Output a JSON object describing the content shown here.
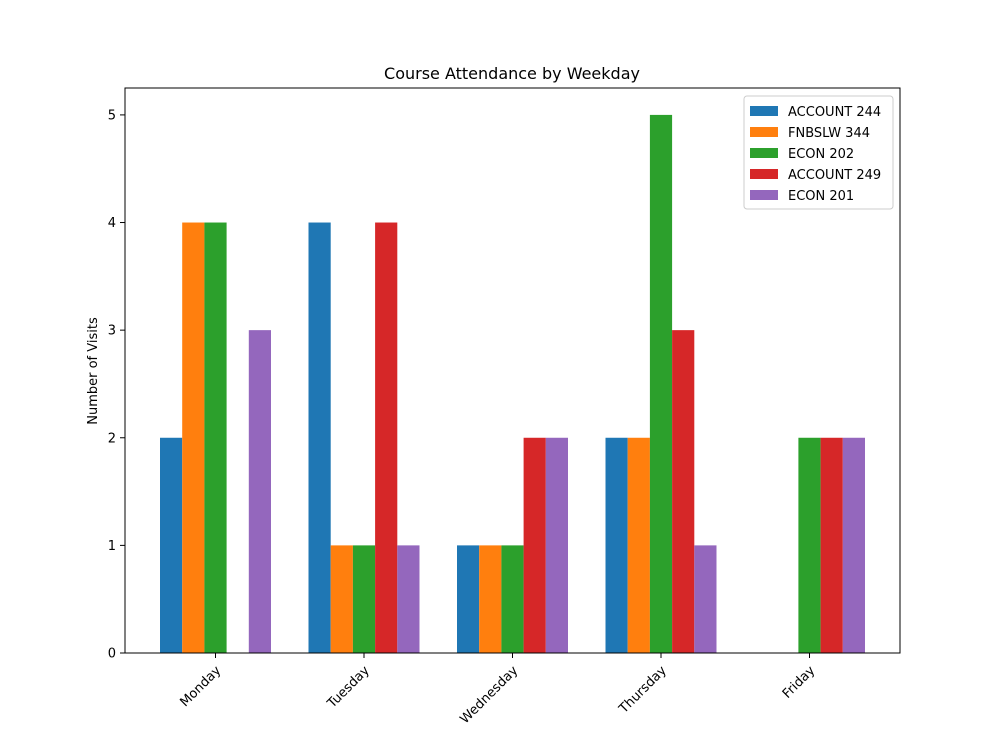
{
  "chart_data": {
    "type": "bar",
    "title": "Course Attendance by Weekday",
    "xlabel": "",
    "ylabel": "Number of Visits",
    "categories": [
      "Monday",
      "Tuesday",
      "Wednesday",
      "Thursday",
      "Friday"
    ],
    "series": [
      {
        "name": "ACCOUNT 244",
        "color": "#1f77b4",
        "values": [
          2,
          4,
          1,
          2,
          0
        ]
      },
      {
        "name": "FNBSLW 344",
        "color": "#ff7f0e",
        "values": [
          4,
          1,
          1,
          2,
          0
        ]
      },
      {
        "name": "ECON 202",
        "color": "#2ca02c",
        "values": [
          4,
          1,
          1,
          5,
          2
        ]
      },
      {
        "name": "ACCOUNT 249",
        "color": "#d62728",
        "values": [
          0,
          4,
          2,
          3,
          2
        ]
      },
      {
        "name": "ECON 201",
        "color": "#9467bd",
        "values": [
          3,
          1,
          2,
          1,
          2
        ]
      }
    ],
    "yticks": [
      0,
      1,
      2,
      3,
      4,
      5
    ],
    "ylim": [
      0,
      5.25
    ],
    "grid": false,
    "legend_position": "top-right"
  }
}
